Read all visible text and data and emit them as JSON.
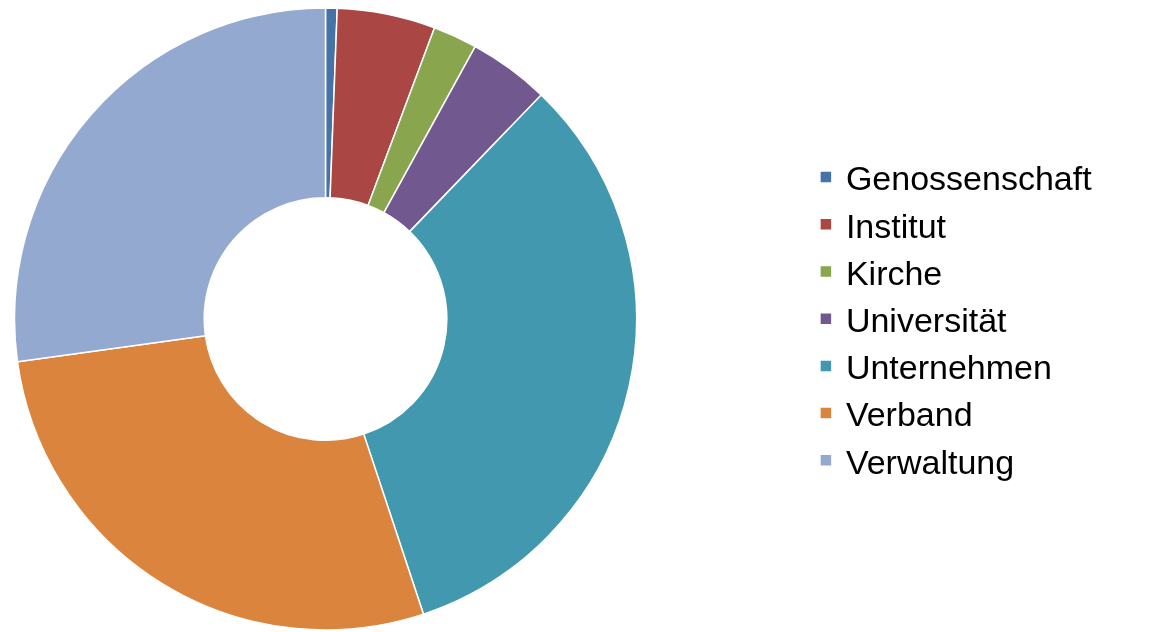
{
  "chart_data": {
    "type": "donut",
    "categories": [
      "Genossenschaft",
      "Institut",
      "Kirche",
      "Universität",
      "Unternehmen",
      "Verband",
      "Verwaltung"
    ],
    "values": [
      0.6,
      5.1,
      2.3,
      4.2,
      32.7,
      27.9,
      27.2
    ],
    "colors": [
      "#4572a7",
      "#aa4643",
      "#89a54e",
      "#71588f",
      "#4198af",
      "#db843d",
      "#93a9cf"
    ],
    "legend": "right"
  }
}
